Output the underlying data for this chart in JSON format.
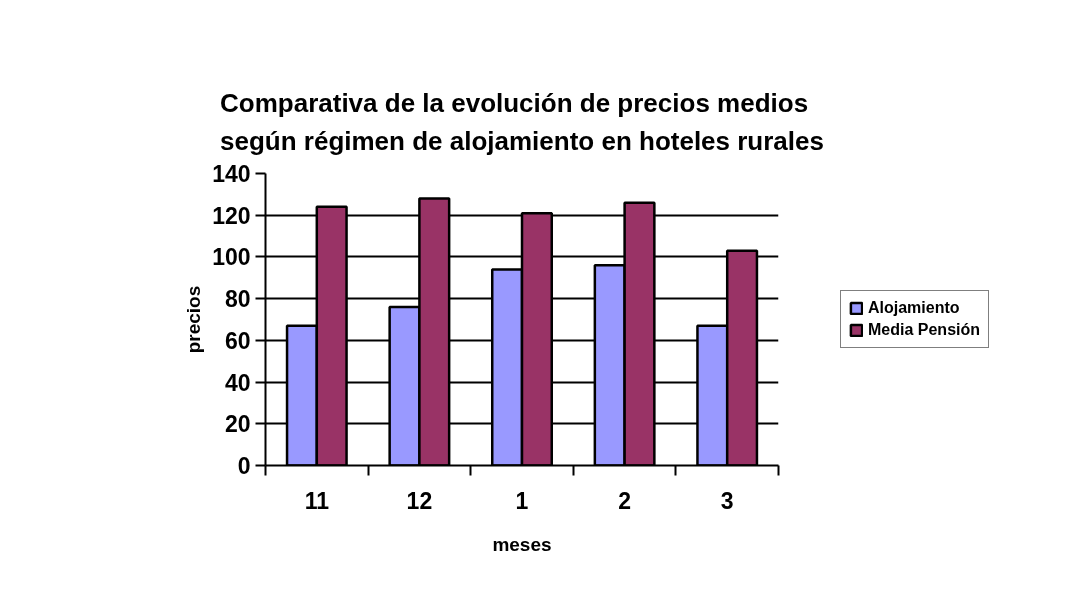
{
  "chart_data": {
    "type": "bar",
    "title": "Comparativa de la evolución de precios medios\nsegún régimen de alojamiento en hoteles rurales",
    "xlabel": "meses",
    "ylabel": "precios",
    "categories": [
      "11",
      "12",
      "1",
      "2",
      "3"
    ],
    "series": [
      {
        "name": "Alojamiento",
        "color": "#9999ff",
        "values": [
          67,
          76,
          94,
          96,
          67
        ]
      },
      {
        "name": "Media Pensión",
        "color": "#993366",
        "values": [
          124,
          128,
          121,
          126,
          103
        ]
      }
    ],
    "ylim": [
      0,
      140
    ],
    "yticks": [
      0,
      20,
      40,
      60,
      80,
      100,
      120,
      140
    ],
    "grid": "y",
    "legend": "right"
  }
}
